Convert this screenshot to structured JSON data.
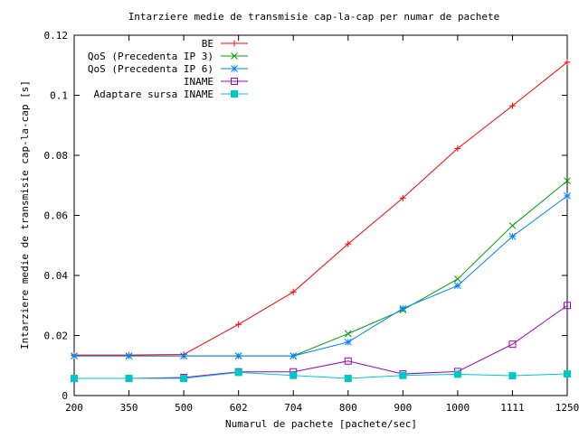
{
  "chart_data": {
    "type": "line",
    "title": "Intarziere medie de transmisie cap-la-cap per numar de pachete",
    "xlabel": "Numarul de pachete [pachete/sec]",
    "ylabel": "Intarziere medie de transmisie cap-la-cap [s]",
    "categories": [
      "200",
      "350",
      "500",
      "602",
      "704",
      "800",
      "900",
      "1000",
      "1111",
      "1250"
    ],
    "ylim": [
      0,
      0.12
    ],
    "yticks": [
      0,
      0.02,
      0.04,
      0.06,
      0.08,
      0.1,
      0.12
    ],
    "ytick_labels": [
      "0",
      "0.02",
      "0.04",
      "0.06",
      "0.08",
      "0.1",
      "0.12"
    ],
    "grid": false,
    "legend_position": "top-left",
    "series": [
      {
        "name": "BE",
        "color": "#ff0000",
        "marker": "plus",
        "values": [
          0.0135,
          0.0135,
          0.0137,
          0.0237,
          0.0345,
          0.0505,
          0.0658,
          0.0823,
          0.0965,
          0.111
        ]
      },
      {
        "name": "QoS (Precedenta IP 3)",
        "color": "#00a000",
        "marker": "cross",
        "values": [
          0.0132,
          0.0132,
          0.0132,
          0.0132,
          0.0132,
          0.0206,
          0.0285,
          0.0388,
          0.0566,
          0.0715
        ]
      },
      {
        "name": "QoS (Precedenta IP 6)",
        "color": "#0080ff",
        "marker": "star",
        "values": [
          0.0132,
          0.0132,
          0.0132,
          0.0132,
          0.0132,
          0.0178,
          0.029,
          0.0366,
          0.053,
          0.0665
        ]
      },
      {
        "name": "INAME",
        "color": "#a000c0",
        "marker": "square-open",
        "values": [
          0.0057,
          0.0057,
          0.006,
          0.0079,
          0.0079,
          0.0115,
          0.0072,
          0.008,
          0.0171,
          0.03
        ]
      },
      {
        "name": "Adaptare sursa INAME",
        "color": "#00c8c8",
        "marker": "square-filled",
        "values": [
          0.0057,
          0.0057,
          0.0057,
          0.0077,
          0.0067,
          0.0057,
          0.0067,
          0.0071,
          0.0066,
          0.0072
        ]
      }
    ]
  }
}
